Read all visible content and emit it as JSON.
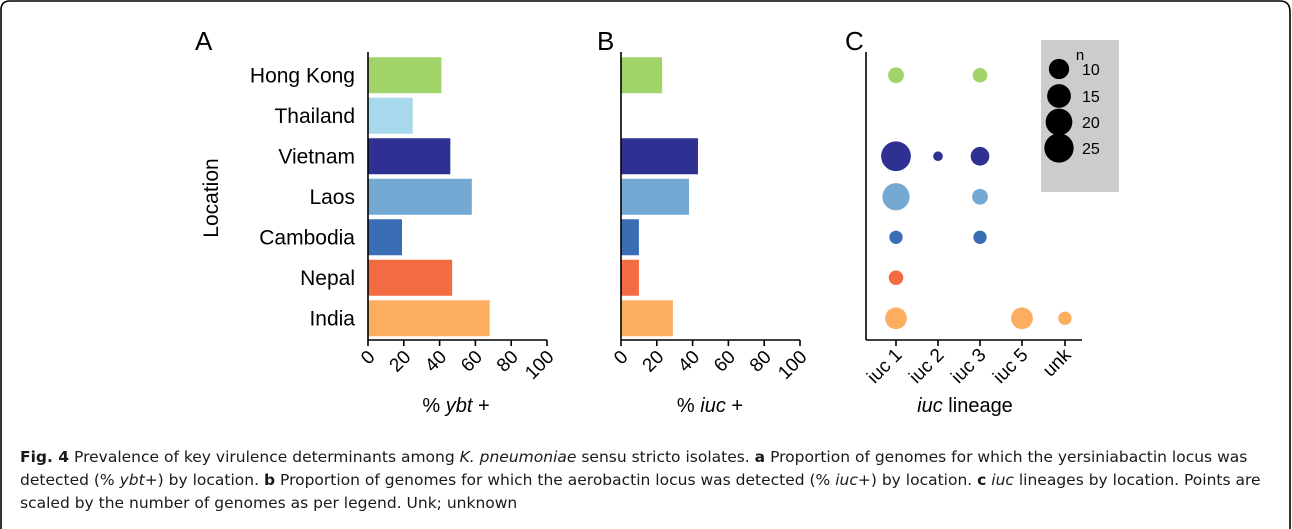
{
  "panel_labels": [
    "A",
    "B",
    "C"
  ],
  "y_axis_title": "Location",
  "colors": {
    "Hong Kong": "#a0d468",
    "Thailand": "#a8d8ec",
    "Vietnam": "#2e3192",
    "Laos": "#74a9d4",
    "Cambodia": "#3a6db3",
    "Nepal": "#f26b43",
    "India": "#fcae60"
  },
  "chart_data": [
    {
      "type": "bar",
      "orientation": "horizontal",
      "panel": "A",
      "categories": [
        "Hong Kong",
        "Thailand",
        "Vietnam",
        "Laos",
        "Cambodia",
        "Nepal",
        "India"
      ],
      "values": [
        41,
        25,
        46,
        58,
        19,
        47,
        68
      ],
      "xlim": [
        0,
        100
      ],
      "xticks": [
        "0",
        "20",
        "40",
        "60",
        "80",
        "100"
      ],
      "xlabel_pre": "% ",
      "xlabel_it": "ybt",
      "xlabel_post": " +",
      "ylabel": "Location"
    },
    {
      "type": "bar",
      "orientation": "horizontal",
      "panel": "B",
      "categories": [
        "Hong Kong",
        "Thailand",
        "Vietnam",
        "Laos",
        "Cambodia",
        "Nepal",
        "India"
      ],
      "values": [
        23,
        0,
        43,
        38,
        10,
        10,
        29
      ],
      "xlim": [
        0,
        100
      ],
      "xticks": [
        "0",
        "20",
        "40",
        "60",
        "80",
        "100"
      ],
      "xlabel_pre": "% ",
      "xlabel_it": "iuc",
      "xlabel_post": " +"
    },
    {
      "type": "scatter",
      "panel": "C",
      "x_categories": [
        "iuc 1",
        "iuc 2",
        "iuc 3",
        "iuc 5",
        "unk"
      ],
      "y_categories": [
        "Hong Kong",
        "Thailand",
        "Vietnam",
        "Laos",
        "Cambodia",
        "Nepal",
        "India"
      ],
      "points": [
        {
          "loc": "Hong Kong",
          "lineage": "iuc 1",
          "n": 5
        },
        {
          "loc": "Hong Kong",
          "lineage": "iuc 3",
          "n": 4
        },
        {
          "loc": "Vietnam",
          "lineage": "iuc 1",
          "n": 26
        },
        {
          "loc": "Vietnam",
          "lineage": "iuc 2",
          "n": 1
        },
        {
          "loc": "Vietnam",
          "lineage": "iuc 3",
          "n": 8
        },
        {
          "loc": "Laos",
          "lineage": "iuc 1",
          "n": 21
        },
        {
          "loc": "Laos",
          "lineage": "iuc 3",
          "n": 5
        },
        {
          "loc": "Cambodia",
          "lineage": "iuc 1",
          "n": 3
        },
        {
          "loc": "Cambodia",
          "lineage": "iuc 3",
          "n": 3
        },
        {
          "loc": "Nepal",
          "lineage": "iuc 1",
          "n": 4
        },
        {
          "loc": "India",
          "lineage": "iuc 1",
          "n": 12
        },
        {
          "loc": "India",
          "lineage": "iuc 5",
          "n": 12
        },
        {
          "loc": "India",
          "lineage": "unk",
          "n": 3
        }
      ],
      "xlabel_it": "iuc",
      "xlabel_post": " lineage",
      "legend": {
        "title": "n",
        "values": [
          10,
          15,
          20,
          25
        ],
        "placement": "top-right"
      }
    }
  ],
  "caption": {
    "fig": "Fig. 4",
    "t1": " Prevalence of key virulence determinants among ",
    "t1_it": "K. pneumoniae",
    "t2": " sensu stricto isolates. ",
    "a": "a",
    "t3": " Proportion of genomes for which the yersiniabactin locus was detected (% ",
    "t3_it": "ybt",
    "t4": "+) by location. ",
    "b": "b",
    "t5": " Proportion of genomes for which the aerobactin locus was detected (% ",
    "t5_it": "iuc",
    "t6": "+) by location. ",
    "c": "c",
    "t7_it": " iuc",
    "t8": " lineages by location. Points are scaled by the number of genomes as per legend. Unk; unknown"
  }
}
